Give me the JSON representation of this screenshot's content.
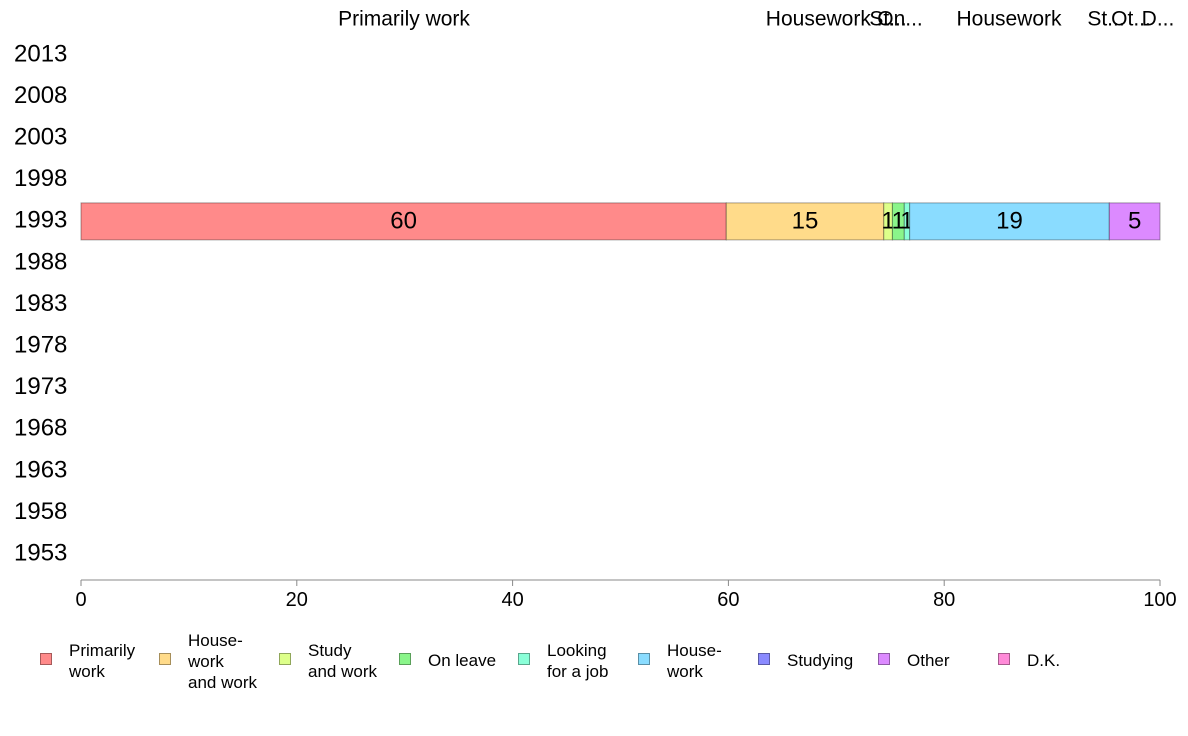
{
  "chart_data": {
    "type": "bar",
    "orientation": "horizontal",
    "stacked": true,
    "title": "",
    "xlabel": "",
    "ylabel": "",
    "xlim": [
      0,
      100
    ],
    "x_ticks": [
      "0",
      "20",
      "40",
      "60",
      "80",
      "100"
    ],
    "categories": [
      "2013",
      "2008",
      "2003",
      "1998",
      "1993",
      "1988",
      "1983",
      "1978",
      "1973",
      "1968",
      "1963",
      "1958",
      "1953"
    ],
    "top_labels": [
      "Primarily work",
      "Housework ...",
      "St...",
      "On...",
      "Housework",
      "St...",
      "Ot...",
      "D..."
    ],
    "grid": false,
    "legend_position": "bottom",
    "series": [
      {
        "name": "Primarily\nwork",
        "color": "#FF8A8A",
        "values": [
          null,
          null,
          null,
          null,
          59.8,
          null,
          null,
          null,
          null,
          null,
          null,
          null,
          null
        ],
        "label": "60"
      },
      {
        "name": "House-\nwork\nand work",
        "color": "#FFDB8A",
        "values": [
          null,
          null,
          null,
          null,
          14.6,
          null,
          null,
          null,
          null,
          null,
          null,
          null,
          null
        ],
        "label": "15"
      },
      {
        "name": "Study\nand work",
        "color": "#DDFF8A",
        "values": [
          null,
          null,
          null,
          null,
          0.8,
          null,
          null,
          null,
          null,
          null,
          null,
          null,
          null
        ],
        "label": "1"
      },
      {
        "name": "On leave",
        "color": "#8AF58A",
        "values": [
          null,
          null,
          null,
          null,
          1.1,
          null,
          null,
          null,
          null,
          null,
          null,
          null,
          null
        ],
        "label": "1"
      },
      {
        "name": "Looking\nfor a job",
        "color": "#8AFFD8",
        "values": [
          null,
          null,
          null,
          null,
          0.5,
          null,
          null,
          null,
          null,
          null,
          null,
          null,
          null
        ],
        "label": "1"
      },
      {
        "name": "House-\nwork",
        "color": "#8ADCFF",
        "values": [
          null,
          null,
          null,
          null,
          18.5,
          null,
          null,
          null,
          null,
          null,
          null,
          null,
          null
        ],
        "label": "19"
      },
      {
        "name": "Studying",
        "color": "#8A8AFF",
        "values": [
          null,
          null,
          null,
          null,
          0.0,
          null,
          null,
          null,
          null,
          null,
          null,
          null,
          null
        ],
        "label": ""
      },
      {
        "name": "Other",
        "color": "#DC8AFF",
        "values": [
          null,
          null,
          null,
          null,
          4.7,
          null,
          null,
          null,
          null,
          null,
          null,
          null,
          null
        ],
        "label": "5"
      },
      {
        "name": "D.K.",
        "color": "#FF8AD8",
        "values": [
          null,
          null,
          null,
          null,
          0.0,
          null,
          null,
          null,
          null,
          null,
          null,
          null,
          null
        ],
        "label": ""
      }
    ]
  }
}
